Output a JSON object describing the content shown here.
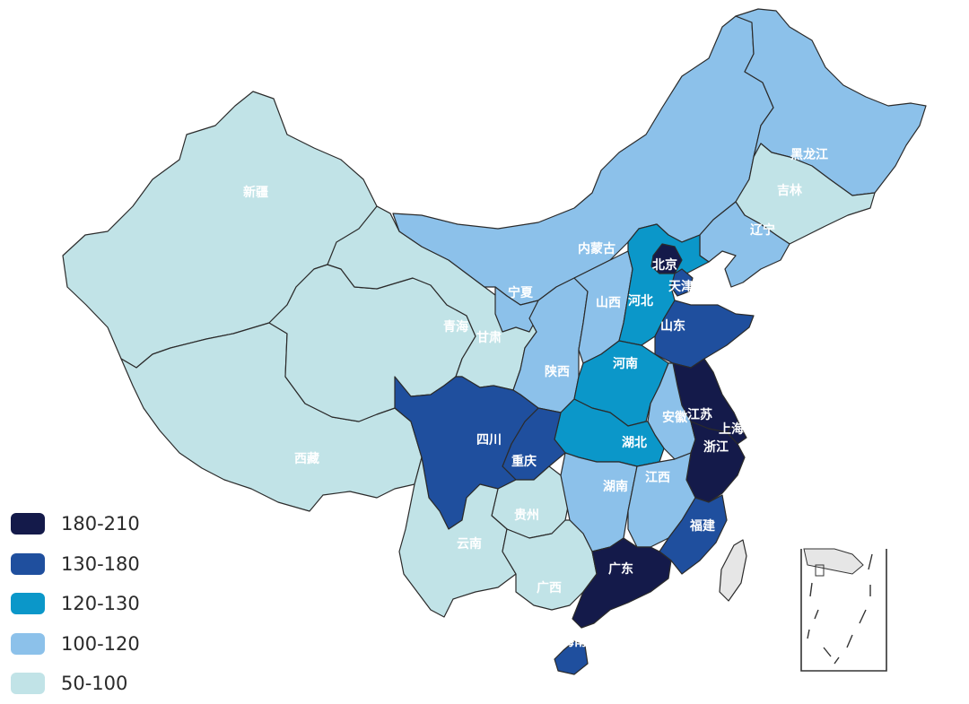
{
  "legend": [
    {
      "label": "180-210",
      "color": "#141a4a"
    },
    {
      "label": "130-180",
      "color": "#1f4f9e"
    },
    {
      "label": "120-130",
      "color": "#0b97c9"
    },
    {
      "label": "100-120",
      "color": "#8cc1ea"
    },
    {
      "label": "50-100",
      "color": "#c1e3e7"
    }
  ],
  "provinces": {
    "xinjiang": {
      "label": "新疆",
      "class": "50-100"
    },
    "xizang": {
      "label": "西藏",
      "class": "50-100"
    },
    "qinghai": {
      "label": "青海",
      "class": "50-100"
    },
    "gansu": {
      "label": "甘肃",
      "class": "50-100"
    },
    "neimenggu": {
      "label": "内蒙古",
      "class": "100-120"
    },
    "heilongjiang": {
      "label": "黑龙江",
      "class": "100-120"
    },
    "jilin": {
      "label": "吉林",
      "class": "50-100"
    },
    "liaoning": {
      "label": "辽宁",
      "class": "100-120"
    },
    "ningxia": {
      "label": "宁夏",
      "class": "100-120"
    },
    "shanxi": {
      "label": "山西",
      "class": "100-120"
    },
    "hebei": {
      "label": "河北",
      "class": "120-130"
    },
    "beijing": {
      "label": "北京",
      "class": "180-210"
    },
    "tianjin": {
      "label": "天津",
      "class": "130-180"
    },
    "shandong": {
      "label": "山东",
      "class": "130-180"
    },
    "henan": {
      "label": "河南",
      "class": "120-130"
    },
    "shaanxi": {
      "label": "陕西",
      "class": "100-120"
    },
    "sichuan": {
      "label": "四川",
      "class": "130-180"
    },
    "chongqing": {
      "label": "重庆",
      "class": "130-180"
    },
    "hubei": {
      "label": "湖北",
      "class": "120-130"
    },
    "anhui": {
      "label": "安徽",
      "class": "100-120"
    },
    "jiangsu": {
      "label": "江苏",
      "class": "180-210"
    },
    "shanghai": {
      "label": "上海",
      "class": "180-210"
    },
    "zhejiang": {
      "label": "浙江",
      "class": "180-210"
    },
    "hunan": {
      "label": "湖南",
      "class": "100-120"
    },
    "jiangxi": {
      "label": "江西",
      "class": "100-120"
    },
    "fujian": {
      "label": "福建",
      "class": "130-180"
    },
    "guizhou": {
      "label": "贵州",
      "class": "50-100"
    },
    "yunnan": {
      "label": "云南",
      "class": "50-100"
    },
    "guangxi": {
      "label": "广西",
      "class": "50-100"
    },
    "guangdong": {
      "label": "广东",
      "class": "180-210"
    },
    "hainan": {
      "label": "海南",
      "class": "130-180"
    },
    "taiwan": {
      "label": "",
      "class": "none"
    }
  },
  "no_data_color": "#e6e6e6"
}
